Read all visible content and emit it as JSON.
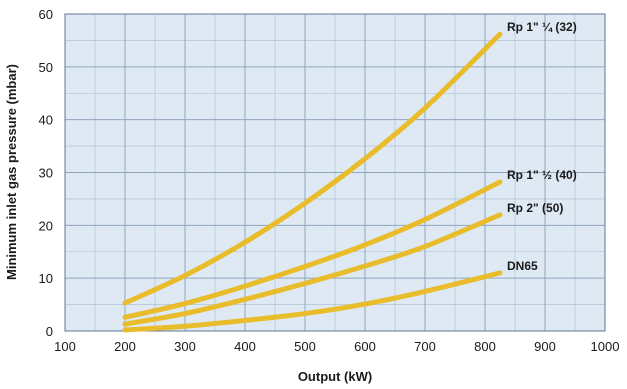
{
  "chart_data": {
    "type": "line",
    "title": "",
    "xlabel": "Output (kW)",
    "ylabel": "Minimum inlet gas pressure (mbar)",
    "xlim": [
      100,
      1000
    ],
    "ylim": [
      0,
      60
    ],
    "x_ticks": [
      100,
      200,
      300,
      400,
      500,
      600,
      700,
      800,
      900,
      1000
    ],
    "y_ticks": [
      0,
      10,
      20,
      30,
      40,
      50,
      60
    ],
    "x_minor_step": 50,
    "y_minor_step": 5,
    "grid": true,
    "line_color": "#e8bc2a",
    "plot_bg": "#dfe9f4",
    "grid_color": "#8fa6bd",
    "series": [
      {
        "name": "Rp 1\" ¼ (32)",
        "x": [
          200,
          300,
          400,
          500,
          600,
          700,
          825
        ],
        "y": [
          5.3,
          10.5,
          16.8,
          24.2,
          32.6,
          42.2,
          56.2
        ]
      },
      {
        "name": "Rp 1\" ½ (40)",
        "x": [
          200,
          300,
          400,
          500,
          600,
          700,
          825
        ],
        "y": [
          2.6,
          5.2,
          8.5,
          12.2,
          16.3,
          21.1,
          28.2
        ]
      },
      {
        "name": "Rp 2\" (50)",
        "x": [
          200,
          300,
          400,
          500,
          600,
          700,
          825
        ],
        "y": [
          1.3,
          3.3,
          6.0,
          9.0,
          12.3,
          16.0,
          22.0
        ]
      },
      {
        "name": "DN65",
        "x": [
          200,
          300,
          400,
          500,
          600,
          700,
          825
        ],
        "y": [
          0.2,
          0.9,
          2.0,
          3.3,
          5.1,
          7.5,
          11.0
        ]
      }
    ]
  }
}
